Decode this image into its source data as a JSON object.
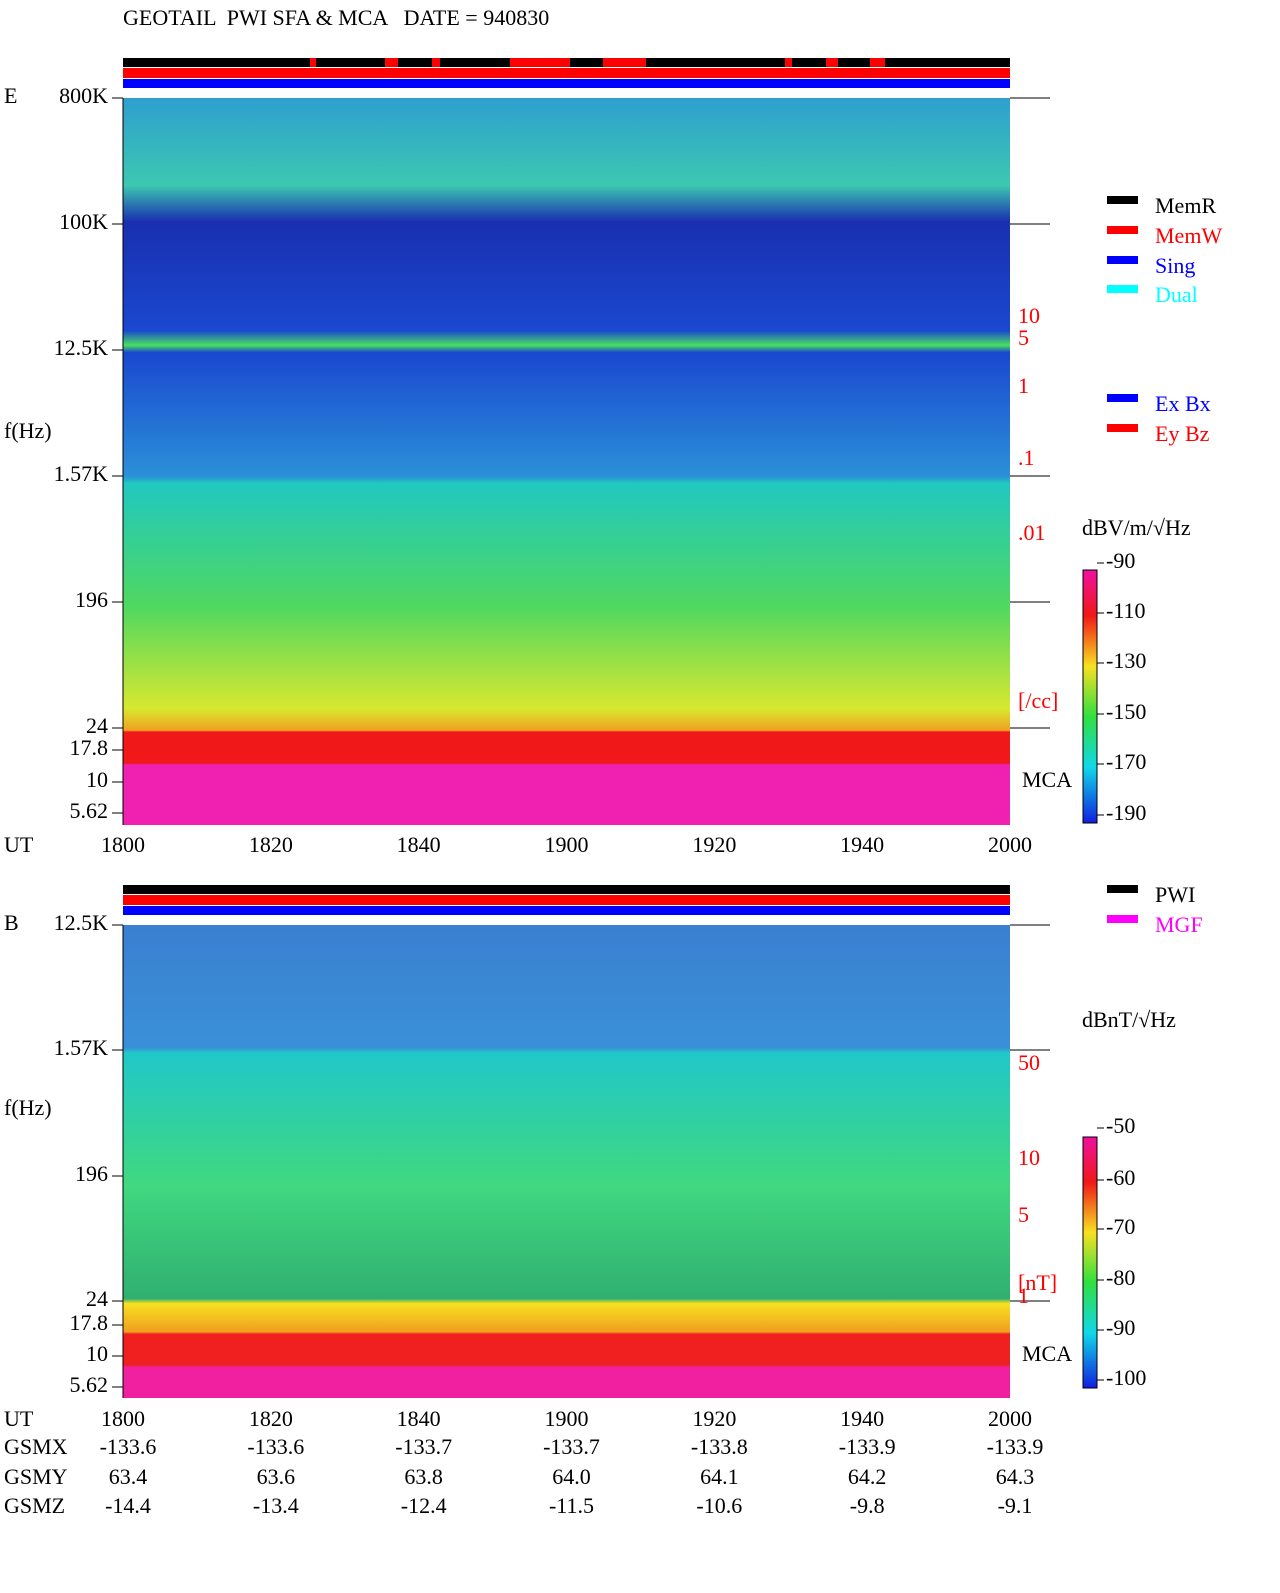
{
  "title": "GEOTAIL  PWI SFA & MCA   DATE = 940830",
  "panels": [
    {
      "label": "E",
      "axis_label": "f(Hz)",
      "y_ticks": [
        "800K",
        "100K",
        "12.5K",
        "1.57K",
        "196",
        "24",
        "17.8",
        "10",
        "5.62"
      ],
      "right_labels": [
        "10",
        "5",
        "1",
        ".1",
        ".01",
        "[/cc]"
      ],
      "mca": "MCA",
      "time_label": "UT",
      "x_ticks": [
        "1800",
        "1820",
        "1840",
        "1900",
        "1920",
        "1940",
        "2000"
      ],
      "legend": [
        "MemR",
        "MemW",
        "Sing",
        "Dual"
      ],
      "legend2": [
        "Ex Bx",
        "Ey Bz"
      ],
      "colorbar": {
        "label": "dBV/m/√Hz",
        "ticks": [
          "-90",
          "-110",
          "-130",
          "-150",
          "-170",
          "-190"
        ]
      }
    },
    {
      "label": "B",
      "axis_label": "f(Hz)",
      "y_ticks": [
        "12.5K",
        "1.57K",
        "196",
        "24",
        "17.8",
        "10",
        "5.62"
      ],
      "right_labels": [
        "50",
        "10",
        "5",
        "1",
        "[nT]"
      ],
      "mca": "MCA",
      "time_label": "UT",
      "x_ticks": [
        "1800",
        "1820",
        "1840",
        "1900",
        "1920",
        "1940",
        "2000"
      ],
      "legend": [
        "PWI",
        "MGF"
      ],
      "colorbar": {
        "label": "dBnT/√Hz",
        "ticks": [
          "-50",
          "-60",
          "-70",
          "-80",
          "-90",
          "-100"
        ]
      }
    }
  ],
  "orbit": {
    "rows": [
      {
        "label": "GSMX",
        "values": [
          "-133.6",
          "-133.6",
          "-133.7",
          "-133.7",
          "-133.8",
          "-133.9",
          "-133.9"
        ]
      },
      {
        "label": "GSMY",
        "values": [
          "63.4",
          "63.6",
          "63.8",
          "64.0",
          "64.1",
          "64.2",
          "64.3"
        ]
      },
      {
        "label": "GSMZ",
        "values": [
          "-14.4",
          "-13.4",
          "-12.4",
          "-11.5",
          "-10.6",
          "-9.8",
          "-9.1"
        ]
      }
    ]
  }
}
